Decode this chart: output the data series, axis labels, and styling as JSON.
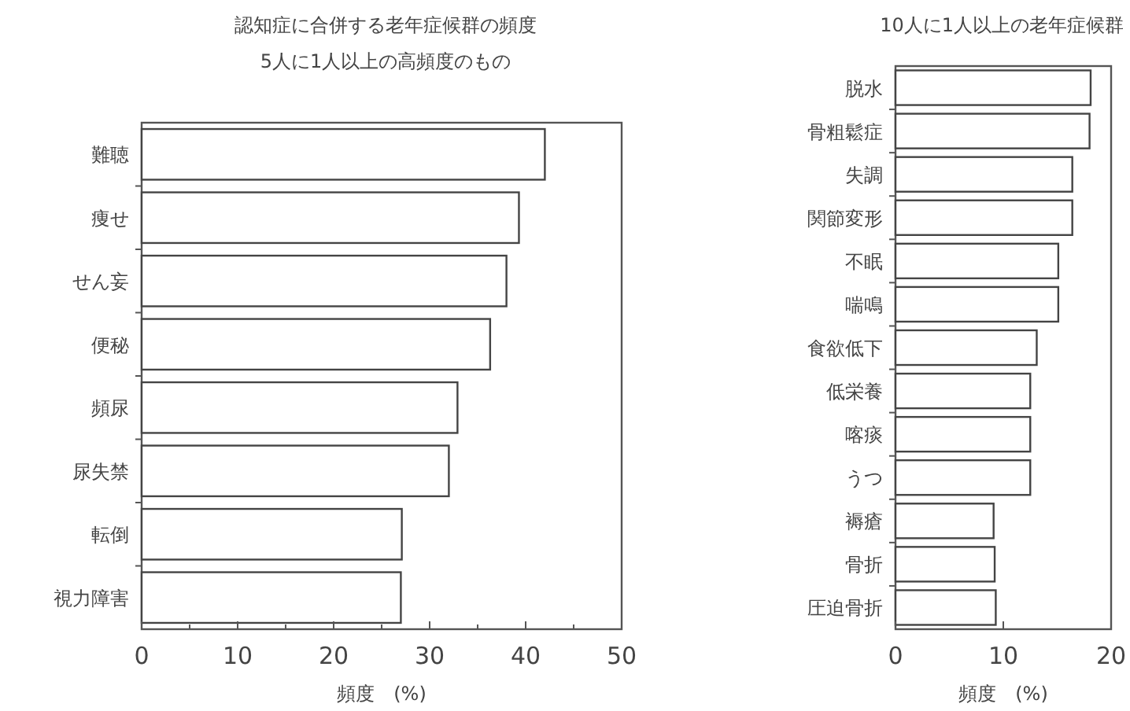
{
  "chart_data": [
    {
      "type": "bar",
      "orientation": "horizontal",
      "title": "認知症に合併する老年症候群の頻度",
      "subtitle": "5人に1人以上の高頻度のもの",
      "xlabel": "頻度　(%)",
      "categories": [
        "難聴",
        "痩せ",
        "せん妄",
        "便秘",
        "頻尿",
        "尿失禁",
        "転倒",
        "視力障害"
      ],
      "values": [
        42,
        39.3,
        38,
        36.3,
        32.9,
        32,
        27.1,
        27
      ],
      "color": "#ffffff",
      "xlim": [
        0,
        50
      ],
      "xticks": [
        0,
        {
          "value": 5,
          "label": null
        },
        10,
        {
          "value": 15,
          "label": null
        },
        20,
        {
          "value": 25,
          "label": null
        },
        30,
        {
          "value": 35,
          "label": null
        },
        40,
        {
          "value": 45,
          "label": null
        },
        50
      ]
    },
    {
      "type": "bar",
      "orientation": "horizontal",
      "title": "10人に1人以上の老年症候群",
      "xlabel": "頻度　(%)",
      "categories": [
        "脱水",
        "骨粗鬆症",
        "失調",
        "関節変形",
        "不眠",
        "喘鳴",
        "食欲低下",
        "低栄養",
        "喀痰",
        "うつ",
        "褥瘡",
        "骨折",
        "圧迫骨折"
      ],
      "values": [
        18.1,
        18,
        16.4,
        16.4,
        15.1,
        15.1,
        13.1,
        12.5,
        12.5,
        12.5,
        9.1,
        9.2,
        9.3
      ],
      "color": "#ffffff",
      "xlim": [
        0,
        20
      ],
      "xticks": [
        0,
        10,
        20
      ]
    }
  ]
}
